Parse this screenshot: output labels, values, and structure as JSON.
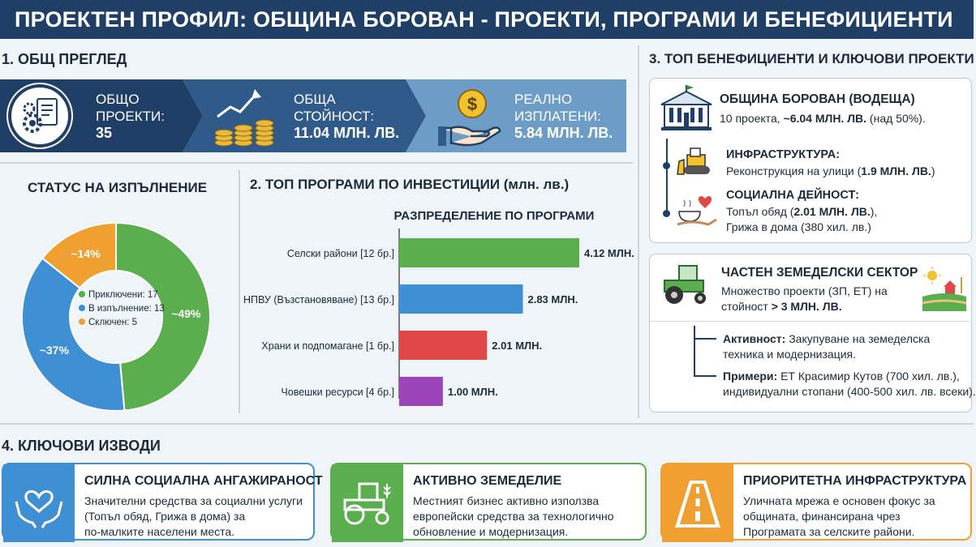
{
  "header": {
    "title": "ПРОЕКТЕН ПРОФИЛ: ОБЩИНА БОРОВАН - ПРОЕКТИ, ПРОГРАМИ И БЕНЕФИЦИЕНТИ"
  },
  "overview": {
    "title": "1. ОБЩ ПРЕГЛЕД",
    "kpis": [
      {
        "label1": "ОБЩО",
        "label2": "ПРОЕКТИ:",
        "value": "35"
      },
      {
        "label1": "ОБЩА",
        "label2": "СТОЙНОСТ:",
        "value": "11.04 МЛН. ЛВ."
      },
      {
        "label1": "РЕАЛНО",
        "label2": "ИЗПЛАТЕНИ:",
        "value": "5.84 МЛН. ЛВ."
      }
    ]
  },
  "status": {
    "title": "СТАТУС НА ИЗПЪЛНЕНИЕ"
  },
  "programs": {
    "title": "2. ТОП ПРОГРАМИ ПО ИНВЕСТИЦИИ (млн. лв.)"
  },
  "beneficiaries": {
    "title": "3. ТОП БЕНЕФИЦИЕНТИ И КЛЮЧОВИ ПРОЕКТИ",
    "municipality": {
      "name": "ОБЩИНА БОРОВАН (ВОДЕЩА)",
      "line_pre": "10 проекта, ",
      "line_bold": "~6.04 МЛН. ЛВ.",
      "line_post": " (над 50%)."
    },
    "infra": {
      "title": "ИНФРАСТРУКТУРА:",
      "text_pre": "Реконструкция на улици (",
      "text_bold": "1.9 МЛН. ЛВ.",
      "text_post": ")"
    },
    "social": {
      "title": "СОЦИАЛНА ДЕЙНОСТ:",
      "line1_pre": "Топъл обяд (",
      "line1_bold": "2.01 МЛН. ЛВ.",
      "line1_post": "),",
      "line2": "Грижа в дома (380 хил. лв.)"
    },
    "private": {
      "title": "ЧАСТЕН ЗЕМЕДЕЛСКИ СЕКТОР",
      "line1": "Множество проекти (ЗП, ЕТ) на",
      "line2_pre": "стойност ",
      "line2_bold": "> 3 МЛН. ЛВ.",
      "activity_label": "Активност:",
      "activity_line1": " Закупуване на земеделска",
      "activity_line2": "техника и модернизация.",
      "examples_label": "Примери:",
      "examples_line1": " ЕТ Красимир Кутов (700 хил. лв.),",
      "examples_line2": "индивидуални стопани (400-500 хил. лв. всеки)."
    }
  },
  "conclusions": {
    "title": "4. КЛЮЧОВИ ИЗВОДИ",
    "cards": [
      {
        "title": "СИЛНА СОЦИАЛНА АНГАЖИРАНОСТ",
        "l1": "Значителни средства за социални услуги",
        "l2": "(Топъл обяд, Грижа в дома) за",
        "l3": "по-малките населени места."
      },
      {
        "title": "АКТИВНО ЗЕМЕДЕЛИЕ",
        "l1": "Местният бизнес активно използва",
        "l2": "европейски средства за технологично",
        "l3": "обновление и модернизация."
      },
      {
        "title": "ПРИОРИТЕТНА ИНФРАСТРУКТУРА",
        "l1": "Уличната мрежа е основен фокус за",
        "l2": "общината, финансирана чрез",
        "l3": "Програмата за селските райони."
      }
    ]
  },
  "colors": {
    "navy": "#1f3f66",
    "green": "#5aae4e",
    "blue": "#3e8fd4",
    "red": "#e04848",
    "orange": "#f0a030",
    "purple": "#9b45b8"
  },
  "chart_data": [
    {
      "type": "pie",
      "title": "",
      "categories": [
        "Приключени",
        "В изпълнение",
        "Сключен"
      ],
      "values": [
        17,
        13,
        5
      ],
      "slice_labels": [
        "~49%",
        "~37%",
        "~14%"
      ],
      "legend": [
        {
          "label": "Приключени: 17",
          "color": "#5aae4e"
        },
        {
          "label": "В изпълнение: 13",
          "color": "#3e8fd4"
        },
        {
          "label": "Сключен: 5",
          "color": "#f0a030"
        }
      ],
      "legend_position": "center"
    },
    {
      "type": "bar",
      "orientation": "horizontal",
      "title": "РАЗПРЕДЕЛЕНИЕ ПО ПРОГРАМИ",
      "categories": [
        "Селски райони [12 бр.]",
        "НПВУ (Възстановяване) [13 бр.]",
        "Храни и подпомагане [1 бр.]",
        "Човешки ресурси [4 бр.]"
      ],
      "values": [
        4.12,
        2.83,
        2.01,
        1.0
      ],
      "value_labels": [
        "4.12 МЛН.",
        "2.83 МЛН.",
        "2.01 МЛН.",
        "1.00 МЛН."
      ],
      "colors": [
        "#5aae4e",
        "#3e8fd4",
        "#e04848",
        "#9b45b8"
      ],
      "xlim": [
        0,
        4.12
      ]
    }
  ]
}
